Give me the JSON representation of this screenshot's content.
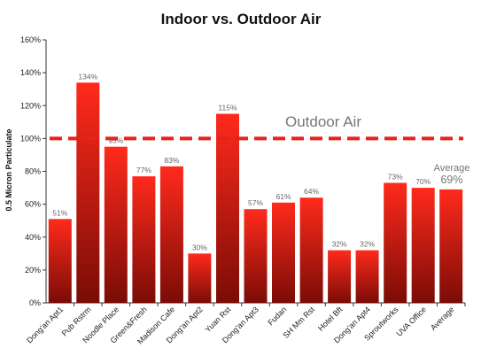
{
  "chart_data": {
    "type": "bar",
    "title": "Indoor vs. Outdoor Air",
    "ylabel": "0.5 Micron Particulate",
    "xlabel": "",
    "ylim": [
      0,
      160
    ],
    "yticks": [
      0,
      20,
      40,
      60,
      80,
      100,
      120,
      140,
      160
    ],
    "ytick_labels": [
      "0%",
      "20%",
      "40%",
      "60%",
      "80%",
      "100%",
      "120%",
      "140%",
      "160%"
    ],
    "categories": [
      "Dong'an Apt1",
      "Pub Rstrm",
      "Noodle Place",
      "Green&Fresh",
      "Madison Cafe",
      "Dong'an Apt2",
      "Yuan Rst",
      "Dong'an Apt3",
      "Fudan",
      "SH Mm Rst",
      "Hotel Bft",
      "Dong'an Apt4",
      "Sproutworks",
      "UVA Office",
      "Average"
    ],
    "values": [
      51,
      134,
      95,
      77,
      83,
      30,
      115,
      57,
      61,
      64,
      32,
      32,
      73,
      70,
      69
    ],
    "data_labels": [
      "51%",
      "134%",
      "95%",
      "77%",
      "83%",
      "30%",
      "115%",
      "57%",
      "61%",
      "64%",
      "32%",
      "32%",
      "73%",
      "70%",
      ""
    ],
    "reference_line": {
      "value": 100,
      "label": "Outdoor Air",
      "style": "dashed",
      "color": "#e8221b"
    },
    "average_annotation": {
      "label": "Average",
      "value_label": "69%"
    },
    "bar_gradient": {
      "top": "#ff2a1c",
      "bottom": "#7a0c06"
    },
    "grid": false,
    "legend": "none"
  }
}
